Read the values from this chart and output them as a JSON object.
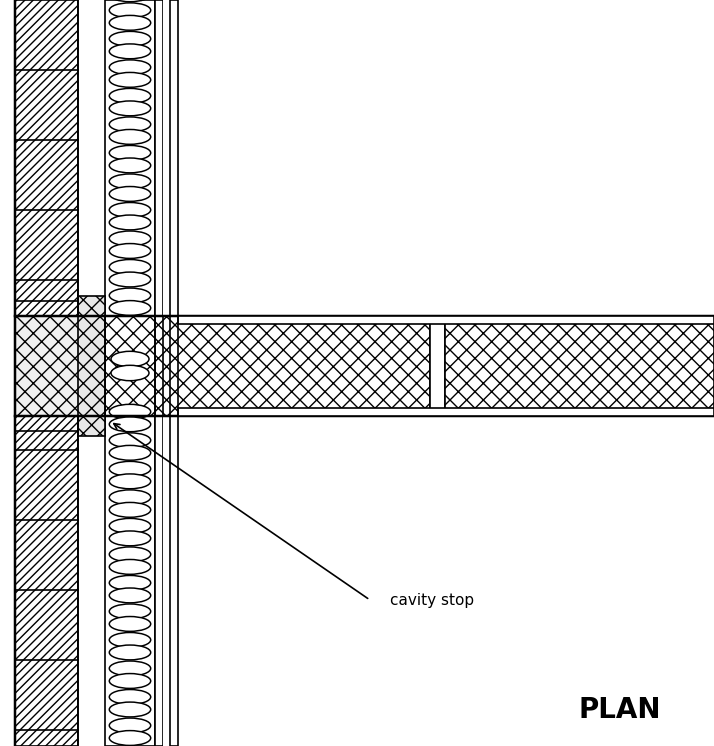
{
  "bg_color": "#ffffff",
  "line_color": "#000000",
  "hatch_color": "#000000",
  "title": "PLAN",
  "title_fontsize": 20,
  "cavity_stop_label": "cavity stop",
  "label_fontsize": 11,
  "figsize": [
    7.14,
    7.46
  ],
  "dpi": 100
}
